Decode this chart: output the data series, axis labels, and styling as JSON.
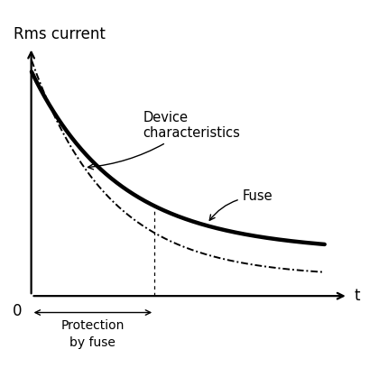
{
  "title": "Rms current",
  "xlabel": "t",
  "bg_color": "#ffffff",
  "fuse_color": "#000000",
  "device_color": "#000000",
  "fuse_lw": 3.2,
  "device_lw": 1.4,
  "vline_x": 0.42,
  "device_label": "Device\ncharacteristics",
  "fuse_label": "Fuse",
  "protection_label": "by fuse",
  "protection_top_label": "Protection",
  "zero_label": "0"
}
